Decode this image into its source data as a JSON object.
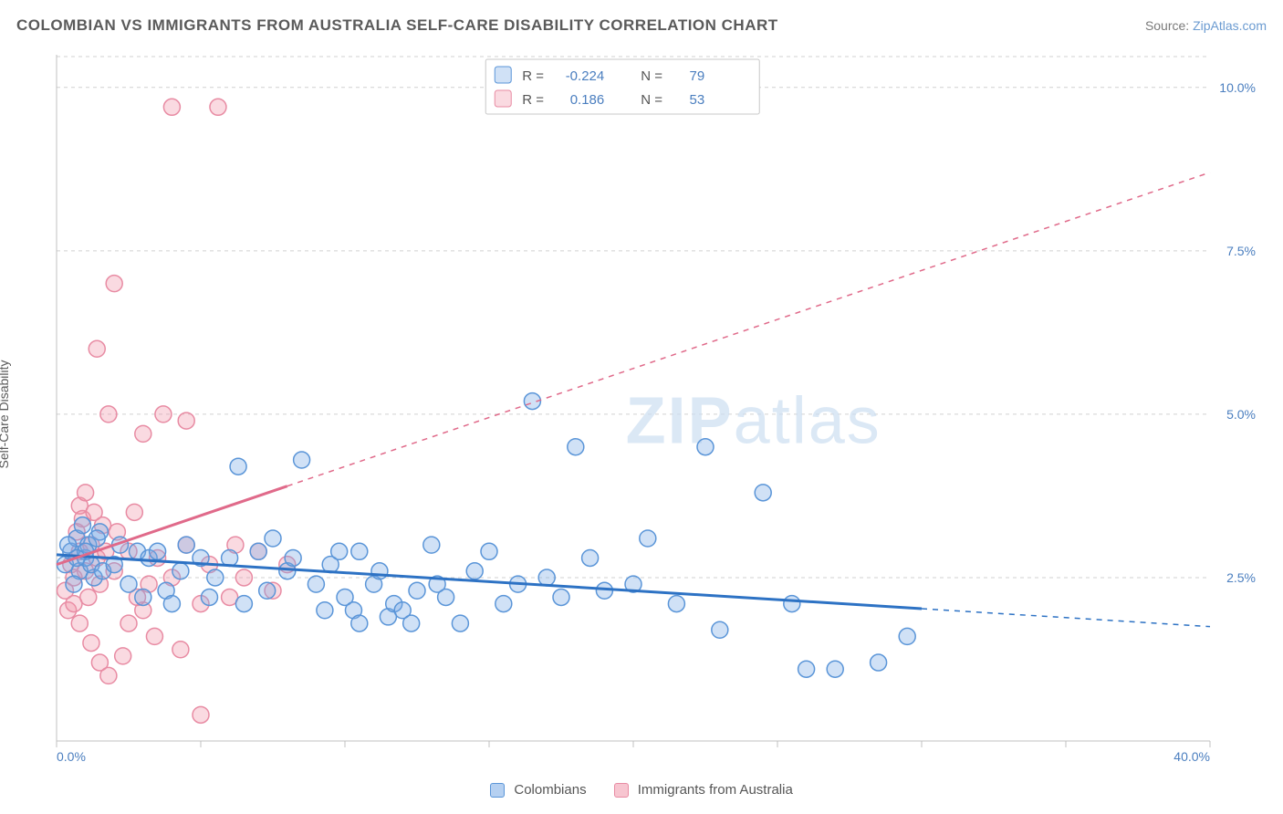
{
  "title": "COLOMBIAN VS IMMIGRANTS FROM AUSTRALIA SELF-CARE DISABILITY CORRELATION CHART",
  "source_prefix": "Source: ",
  "source_link": "ZipAtlas.com",
  "y_axis_label": "Self-Care Disability",
  "watermark_zip": "ZIP",
  "watermark_atlas": "atlas",
  "chart": {
    "type": "scatter",
    "xlim": [
      0,
      40
    ],
    "ylim": [
      0,
      10.5
    ],
    "x_ticks": [
      0,
      5,
      10,
      15,
      20,
      25,
      30,
      35,
      40
    ],
    "y_ticks": [
      2.5,
      5.0,
      7.5,
      10.0
    ],
    "y_tick_labels": [
      "2.5%",
      "5.0%",
      "7.5%",
      "10.0%"
    ],
    "x_min_label": "0.0%",
    "x_max_label": "40.0%",
    "grid_color": "#d0d0d0",
    "background_color": "#ffffff",
    "axis_color": "#c0c0c0",
    "marker_radius": 9,
    "marker_stroke_width": 1.5,
    "trend_line_width": 3,
    "trend_dash": "6 6"
  },
  "series": [
    {
      "name": "Colombians",
      "fill": "rgba(120,170,230,0.35)",
      "stroke": "#5a95d8",
      "R": "-0.224",
      "N": "79",
      "trend": {
        "x1": 0,
        "y1": 2.85,
        "x2": 40,
        "y2": 1.75,
        "color": "#2d72c4",
        "solid_to_x": 30
      },
      "points": [
        [
          0.3,
          2.7
        ],
        [
          0.5,
          2.9
        ],
        [
          0.7,
          3.1
        ],
        [
          0.8,
          2.6
        ],
        [
          1.0,
          2.8
        ],
        [
          1.1,
          3.0
        ],
        [
          1.3,
          2.5
        ],
        [
          1.5,
          3.2
        ],
        [
          0.6,
          2.4
        ],
        [
          0.9,
          3.3
        ],
        [
          1.0,
          2.9
        ],
        [
          1.2,
          2.7
        ],
        [
          1.4,
          3.1
        ],
        [
          1.6,
          2.6
        ],
        [
          0.4,
          3.0
        ],
        [
          0.7,
          2.8
        ],
        [
          2.0,
          2.7
        ],
        [
          2.2,
          3.0
        ],
        [
          2.5,
          2.4
        ],
        [
          2.8,
          2.9
        ],
        [
          3.0,
          2.2
        ],
        [
          3.2,
          2.8
        ],
        [
          3.5,
          2.9
        ],
        [
          3.8,
          2.3
        ],
        [
          4.0,
          2.1
        ],
        [
          4.3,
          2.6
        ],
        [
          4.5,
          3.0
        ],
        [
          5.0,
          2.8
        ],
        [
          5.3,
          2.2
        ],
        [
          5.5,
          2.5
        ],
        [
          6.0,
          2.8
        ],
        [
          6.3,
          4.2
        ],
        [
          6.5,
          2.1
        ],
        [
          7.0,
          2.9
        ],
        [
          7.3,
          2.3
        ],
        [
          8.0,
          2.6
        ],
        [
          8.5,
          4.3
        ],
        [
          9.0,
          2.4
        ],
        [
          9.3,
          2.0
        ],
        [
          9.5,
          2.7
        ],
        [
          10.0,
          2.2
        ],
        [
          10.3,
          2.0
        ],
        [
          10.5,
          1.8
        ],
        [
          10.5,
          2.9
        ],
        [
          11.0,
          2.4
        ],
        [
          11.5,
          1.9
        ],
        [
          11.7,
          2.1
        ],
        [
          12.0,
          2.0
        ],
        [
          12.3,
          1.8
        ],
        [
          12.5,
          2.3
        ],
        [
          13.0,
          3.0
        ],
        [
          13.5,
          2.2
        ],
        [
          14.0,
          1.8
        ],
        [
          14.5,
          2.6
        ],
        [
          15.0,
          2.9
        ],
        [
          15.5,
          2.1
        ],
        [
          16.0,
          2.4
        ],
        [
          16.5,
          5.2
        ],
        [
          17.0,
          2.5
        ],
        [
          17.5,
          2.2
        ],
        [
          18.0,
          4.5
        ],
        [
          18.5,
          2.8
        ],
        [
          19.0,
          2.3
        ],
        [
          20.0,
          2.4
        ],
        [
          20.5,
          3.1
        ],
        [
          21.5,
          2.1
        ],
        [
          22.5,
          4.5
        ],
        [
          23.0,
          1.7
        ],
        [
          24.5,
          3.8
        ],
        [
          25.5,
          2.1
        ],
        [
          26.0,
          1.1
        ],
        [
          27.0,
          1.1
        ],
        [
          28.5,
          1.2
        ],
        [
          29.5,
          1.6
        ],
        [
          7.5,
          3.1
        ],
        [
          8.2,
          2.8
        ],
        [
          9.8,
          2.9
        ],
        [
          11.2,
          2.6
        ],
        [
          13.2,
          2.4
        ]
      ]
    },
    {
      "name": "Immigrants from Australia",
      "fill": "rgba(240,150,170,0.35)",
      "stroke": "#e88ba3",
      "R": "0.186",
      "N": "53",
      "trend": {
        "x1": 0,
        "y1": 2.7,
        "x2": 40,
        "y2": 8.7,
        "color": "#e06a8a",
        "solid_to_x": 8
      },
      "points": [
        [
          0.3,
          2.3
        ],
        [
          0.4,
          2.0
        ],
        [
          0.5,
          2.7
        ],
        [
          0.6,
          2.1
        ],
        [
          0.6,
          2.5
        ],
        [
          0.7,
          3.2
        ],
        [
          0.8,
          2.9
        ],
        [
          0.8,
          3.6
        ],
        [
          0.8,
          1.8
        ],
        [
          0.9,
          3.4
        ],
        [
          1.0,
          2.6
        ],
        [
          1.0,
          3.8
        ],
        [
          1.1,
          2.2
        ],
        [
          1.2,
          3.0
        ],
        [
          1.2,
          1.5
        ],
        [
          1.3,
          3.5
        ],
        [
          1.4,
          2.8
        ],
        [
          1.4,
          6.0
        ],
        [
          1.5,
          1.2
        ],
        [
          1.5,
          2.4
        ],
        [
          1.6,
          3.3
        ],
        [
          1.7,
          2.9
        ],
        [
          1.8,
          1.0
        ],
        [
          1.8,
          5.0
        ],
        [
          2.0,
          2.6
        ],
        [
          2.0,
          7.0
        ],
        [
          2.1,
          3.2
        ],
        [
          2.3,
          1.3
        ],
        [
          2.5,
          2.9
        ],
        [
          2.5,
          1.8
        ],
        [
          2.7,
          3.5
        ],
        [
          3.0,
          2.0
        ],
        [
          3.0,
          4.7
        ],
        [
          3.2,
          2.4
        ],
        [
          3.5,
          2.8
        ],
        [
          3.7,
          5.0
        ],
        [
          4.0,
          2.5
        ],
        [
          4.0,
          9.7
        ],
        [
          4.3,
          1.4
        ],
        [
          4.5,
          3.0
        ],
        [
          4.5,
          4.9
        ],
        [
          5.0,
          2.1
        ],
        [
          5.0,
          0.4
        ],
        [
          5.3,
          2.7
        ],
        [
          5.6,
          9.7
        ],
        [
          6.0,
          2.2
        ],
        [
          6.2,
          3.0
        ],
        [
          6.5,
          2.5
        ],
        [
          7.0,
          2.9
        ],
        [
          7.5,
          2.3
        ],
        [
          8.0,
          2.7
        ],
        [
          2.8,
          2.2
        ],
        [
          3.4,
          1.6
        ]
      ]
    }
  ],
  "stats_legend": {
    "r_label": "R =",
    "n_label": "N ="
  },
  "bottom_legend": [
    {
      "label": "Colombians",
      "fill": "rgba(120,170,230,0.55)",
      "stroke": "#5a95d8"
    },
    {
      "label": "Immigrants from Australia",
      "fill": "rgba(240,150,170,0.55)",
      "stroke": "#e88ba3"
    }
  ]
}
